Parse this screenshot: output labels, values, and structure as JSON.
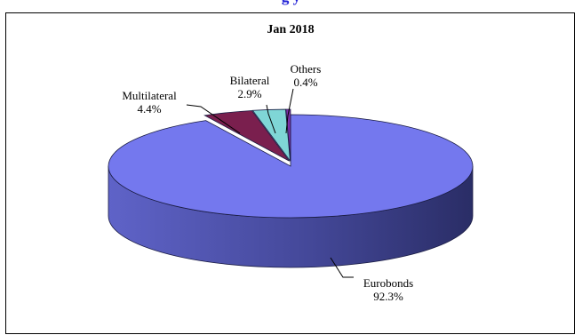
{
  "header": {
    "title_fragment": "g        y"
  },
  "chart_data": {
    "type": "pie",
    "title": "Jan 2018",
    "slices": [
      {
        "label": "Eurobonds",
        "value": 92.3,
        "value_label": "92.3%",
        "color": "#7478ee"
      },
      {
        "label": "Multilateral",
        "value": 4.4,
        "value_label": "4.4%",
        "color": "#7a1f4e"
      },
      {
        "label": "Bilateral",
        "value": 2.9,
        "value_label": "2.9%",
        "color": "#7fd6d6"
      },
      {
        "label": "Others",
        "value": 0.4,
        "value_label": "0.4%",
        "color": "#7f2fa8"
      }
    ],
    "style": "3d-exploded"
  }
}
